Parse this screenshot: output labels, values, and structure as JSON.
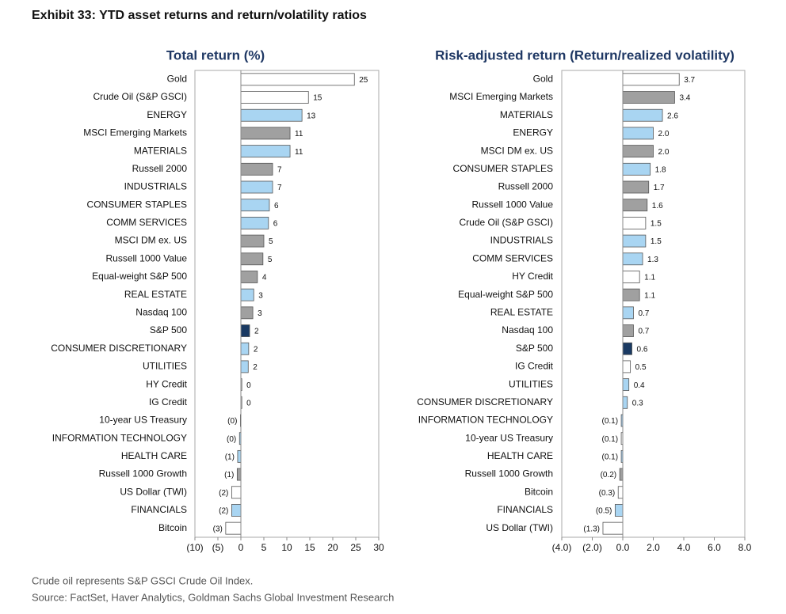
{
  "title": "Exhibit 33: YTD asset returns and return/volatility ratios",
  "notes": [
    "Crude oil represents S&P GSCI Crude Oil Index.",
    "Source: FactSet, Haver Analytics, Goldman Sachs Global Investment Research"
  ],
  "chart_data": [
    {
      "type": "hbar",
      "title": "Total return (%)",
      "categories": [
        "Gold",
        "Crude Oil (S&P GSCI)",
        "ENERGY",
        "MSCI Emerging Markets",
        "MATERIALS",
        "Russell 2000",
        "INDUSTRIALS",
        "CONSUMER STAPLES",
        "COMM SERVICES",
        "MSCI DM ex. US",
        "Russell 1000 Value",
        "Equal-weight S&P 500",
        "REAL ESTATE",
        "Nasdaq 100",
        "S&P 500",
        "CONSUMER DISCRETIONARY",
        "UTILITIES",
        "HY Credit",
        "IG Credit",
        "10-year US Treasury",
        "INFORMATION TECHNOLOGY",
        "HEALTH CARE",
        "Russell 1000 Growth",
        "US Dollar (TWI)",
        "FINANCIALS",
        "Bitcoin"
      ],
      "values": [
        24.7,
        14.7,
        13.3,
        10.7,
        10.7,
        6.9,
        6.9,
        6.2,
        6.0,
        5.0,
        4.8,
        3.6,
        2.8,
        2.6,
        1.9,
        1.7,
        1.6,
        0.2,
        0.2,
        -0.1,
        -0.3,
        -0.7,
        -0.8,
        -2.0,
        -2.0,
        -3.3
      ],
      "value_labels": [
        "25",
        "15",
        "13",
        "11",
        "11",
        "7",
        "7",
        "6",
        "6",
        "5",
        "5",
        "4",
        "3",
        "3",
        "2",
        "2",
        "2",
        "0",
        "0",
        "(0)",
        "(0)",
        "(1)",
        "(1)",
        "(2)",
        "(2)",
        "(3)"
      ],
      "colors": [
        "#ffffff",
        "#ffffff",
        "#a9d5f2",
        "#a0a0a0",
        "#a9d5f2",
        "#a0a0a0",
        "#a9d5f2",
        "#a9d5f2",
        "#a9d5f2",
        "#a0a0a0",
        "#a0a0a0",
        "#a0a0a0",
        "#a9d5f2",
        "#a0a0a0",
        "#1a3a63",
        "#a9d5f2",
        "#a9d5f2",
        "#ffffff",
        "#ffffff",
        "#ffffff",
        "#a9d5f2",
        "#a9d5f2",
        "#a0a0a0",
        "#ffffff",
        "#a9d5f2",
        "#ffffff"
      ],
      "xlim": [
        -10,
        30
      ],
      "xticks": [
        {
          "value": -10,
          "label": "(10)"
        },
        {
          "value": -5,
          "label": "(5)"
        },
        0,
        5,
        10,
        15,
        20,
        25,
        30
      ]
    },
    {
      "type": "hbar",
      "title": "Risk-adjusted return (Return/realized volatility)",
      "categories": [
        "Gold",
        "MSCI Emerging Markets",
        "MATERIALS",
        "ENERGY",
        "MSCI DM ex. US",
        "CONSUMER STAPLES",
        "Russell 2000",
        "Russell 1000 Value",
        "Crude Oil (S&P GSCI)",
        "INDUSTRIALS",
        "COMM SERVICES",
        "HY Credit",
        "Equal-weight S&P 500",
        "REAL ESTATE",
        "Nasdaq 100",
        "S&P 500",
        "IG Credit",
        "UTILITIES",
        "CONSUMER DISCRETIONARY",
        "INFORMATION TECHNOLOGY",
        "10-year US Treasury",
        "HEALTH CARE",
        "Russell 1000 Growth",
        "Bitcoin",
        "FINANCIALS",
        "US Dollar (TWI)"
      ],
      "values": [
        3.7,
        3.4,
        2.6,
        2.0,
        2.0,
        1.8,
        1.7,
        1.6,
        1.5,
        1.5,
        1.3,
        1.1,
        1.1,
        0.7,
        0.7,
        0.6,
        0.5,
        0.4,
        0.3,
        -0.1,
        -0.1,
        -0.1,
        -0.2,
        -0.3,
        -0.5,
        -1.3
      ],
      "value_labels": [
        "3.7",
        "3.4",
        "2.6",
        "2.0",
        "2.0",
        "1.8",
        "1.7",
        "1.6",
        "1.5",
        "1.5",
        "1.3",
        "1.1",
        "1.1",
        "0.7",
        "0.7",
        "0.6",
        "0.5",
        "0.4",
        "0.3",
        "(0.1)",
        "(0.1)",
        "(0.1)",
        "(0.2)",
        "(0.3)",
        "(0.5)",
        "(1.3)"
      ],
      "colors": [
        "#ffffff",
        "#a0a0a0",
        "#a9d5f2",
        "#a9d5f2",
        "#a0a0a0",
        "#a9d5f2",
        "#a0a0a0",
        "#a0a0a0",
        "#ffffff",
        "#a9d5f2",
        "#a9d5f2",
        "#ffffff",
        "#a0a0a0",
        "#a9d5f2",
        "#a0a0a0",
        "#1a3a63",
        "#ffffff",
        "#a9d5f2",
        "#a9d5f2",
        "#a9d5f2",
        "#ffffff",
        "#a9d5f2",
        "#a0a0a0",
        "#ffffff",
        "#a9d5f2",
        "#ffffff"
      ],
      "xlim": [
        -4,
        8
      ],
      "xticks": [
        {
          "value": -4,
          "label": "(4.0)"
        },
        {
          "value": -2,
          "label": "(2.0)"
        },
        {
          "value": 0,
          "label": "0.0"
        },
        {
          "value": 2,
          "label": "2.0"
        },
        {
          "value": 4,
          "label": "4.0"
        },
        {
          "value": 6,
          "label": "6.0"
        },
        {
          "value": 8,
          "label": "8.0"
        }
      ]
    }
  ]
}
